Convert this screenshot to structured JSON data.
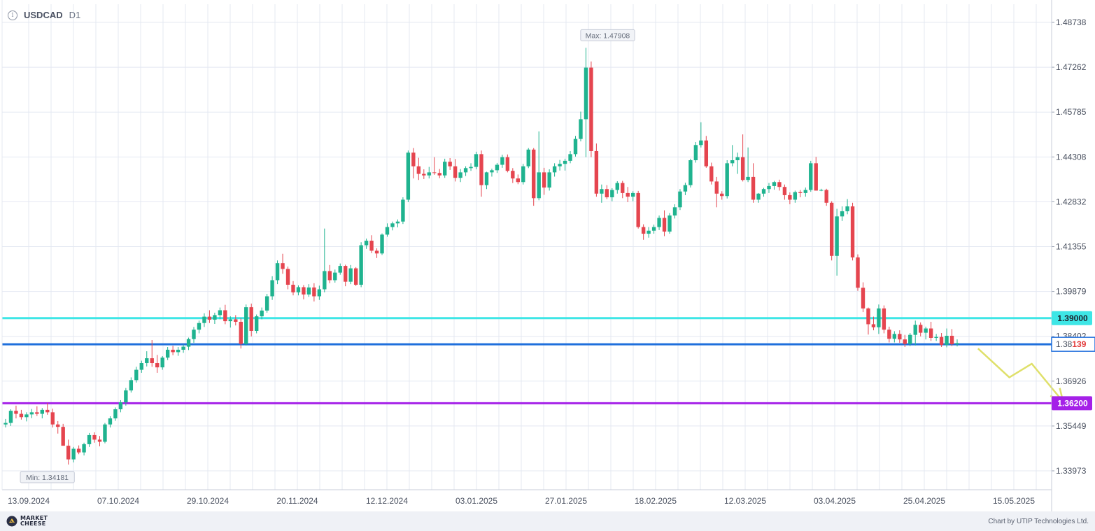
{
  "header": {
    "symbol": "USDCAD",
    "timeframe": "D1",
    "info_icon": "info-circle-icon"
  },
  "footer": {
    "logo_line1": "MARKET",
    "logo_line2": "CHEESE",
    "credit": "Chart by UTIP Technologies Ltd."
  },
  "chart_data": {
    "type": "candlestick",
    "symbol": "USDCAD",
    "timeframe": "D1",
    "y_ticks": [
      "1.48738",
      "1.47262",
      "1.45785",
      "1.44308",
      "1.42832",
      "1.41355",
      "1.39879",
      "1.38402",
      "1.36926",
      "1.35449",
      "1.33973"
    ],
    "ylim": [
      1.3355,
      1.494
    ],
    "x_ticks": [
      "13.09.2024",
      "07.10.2024",
      "29.10.2024",
      "20.11.2024",
      "12.12.2024",
      "03.01.2025",
      "27.01.2025",
      "18.02.2025",
      "12.03.2025",
      "03.04.2025",
      "25.04.2025",
      "15.05.2025"
    ],
    "max_label": "Max: 1.47908",
    "min_label": "Min: 1.34181",
    "levels": [
      {
        "name": "resistance",
        "value": "1.39000",
        "color": "#3ee6e6"
      },
      {
        "name": "current",
        "value": "1.38139",
        "prefix": "1.38",
        "suffix": "139",
        "color": "#1f6fdc",
        "suffix_color": "#e23a3a"
      },
      {
        "name": "support",
        "value": "1.36200",
        "color": "#a521e8"
      }
    ],
    "colors": {
      "up": "#1fb38f",
      "down": "#e5454f",
      "grid": "#e4e8f2",
      "forecast": "#dfe06a"
    },
    "forecast_path": [
      {
        "date": "07.05.2025",
        "price": 1.38
      },
      {
        "date": "14.05.2025",
        "price": 1.3705
      },
      {
        "date": "19.05.2025",
        "price": 1.375
      },
      {
        "date": "26.05.2025",
        "price": 1.3625
      }
    ],
    "candles": [
      [
        1.355,
        1.3568,
        1.354,
        1.3555
      ],
      [
        1.3555,
        1.36,
        1.3545,
        1.3595
      ],
      [
        1.3595,
        1.3612,
        1.357,
        1.3585
      ],
      [
        1.3585,
        1.3598,
        1.3566,
        1.3574
      ],
      [
        1.3574,
        1.359,
        1.356,
        1.3583
      ],
      [
        1.3583,
        1.3601,
        1.3571,
        1.359
      ],
      [
        1.359,
        1.361,
        1.3578,
        1.3585
      ],
      [
        1.3585,
        1.3604,
        1.357,
        1.3598
      ],
      [
        1.3598,
        1.3621,
        1.3582,
        1.359
      ],
      [
        1.359,
        1.3602,
        1.354,
        1.355
      ],
      [
        1.355,
        1.3561,
        1.352,
        1.3542
      ],
      [
        1.3542,
        1.3552,
        1.348,
        1.348
      ],
      [
        1.348,
        1.35,
        1.3418,
        1.3435
      ],
      [
        1.3435,
        1.3476,
        1.3425,
        1.347
      ],
      [
        1.347,
        1.3481,
        1.3452,
        1.3458
      ],
      [
        1.3458,
        1.349,
        1.3448,
        1.3485
      ],
      [
        1.3485,
        1.3522,
        1.3476,
        1.3515
      ],
      [
        1.3515,
        1.3524,
        1.349,
        1.35
      ],
      [
        1.35,
        1.3512,
        1.3478,
        1.3493
      ],
      [
        1.3493,
        1.3555,
        1.3488,
        1.355
      ],
      [
        1.355,
        1.3577,
        1.354,
        1.357
      ],
      [
        1.357,
        1.3606,
        1.3562,
        1.36
      ],
      [
        1.36,
        1.363,
        1.359,
        1.3623
      ],
      [
        1.3623,
        1.367,
        1.3612,
        1.3662
      ],
      [
        1.3662,
        1.3705,
        1.3655,
        1.3696
      ],
      [
        1.3696,
        1.374,
        1.3688,
        1.373
      ],
      [
        1.373,
        1.376,
        1.372,
        1.3752
      ],
      [
        1.3752,
        1.3791,
        1.3741,
        1.3768
      ],
      [
        1.3768,
        1.3828,
        1.374,
        1.3752
      ],
      [
        1.3752,
        1.3779,
        1.372,
        1.3738
      ],
      [
        1.3738,
        1.3775,
        1.373,
        1.377
      ],
      [
        1.377,
        1.3805,
        1.3762,
        1.3796
      ],
      [
        1.3796,
        1.3809,
        1.3778,
        1.3788
      ],
      [
        1.3788,
        1.3805,
        1.3776,
        1.3796
      ],
      [
        1.3796,
        1.3813,
        1.3786,
        1.3806
      ],
      [
        1.3806,
        1.3836,
        1.3795,
        1.3831
      ],
      [
        1.3831,
        1.3871,
        1.3819,
        1.3862
      ],
      [
        1.3862,
        1.3892,
        1.385,
        1.3884
      ],
      [
        1.3884,
        1.3916,
        1.3871,
        1.3905
      ],
      [
        1.3905,
        1.3926,
        1.3884,
        1.3895
      ],
      [
        1.3895,
        1.3918,
        1.3881,
        1.391
      ],
      [
        1.391,
        1.3935,
        1.3896,
        1.3926
      ],
      [
        1.3926,
        1.3944,
        1.388,
        1.389
      ],
      [
        1.389,
        1.3906,
        1.3869,
        1.3896
      ],
      [
        1.3896,
        1.391,
        1.3876,
        1.3888
      ],
      [
        1.3888,
        1.39,
        1.38,
        1.3815
      ],
      [
        1.3815,
        1.3945,
        1.381,
        1.3936
      ],
      [
        1.3936,
        1.3948,
        1.384,
        1.3858
      ],
      [
        1.3858,
        1.3912,
        1.385,
        1.3906
      ],
      [
        1.3906,
        1.3935,
        1.3896,
        1.3925
      ],
      [
        1.3925,
        1.398,
        1.3918,
        1.3972
      ],
      [
        1.3972,
        1.4038,
        1.396,
        1.4025
      ],
      [
        1.4025,
        1.409,
        1.4012,
        1.4081
      ],
      [
        1.4081,
        1.4112,
        1.4046,
        1.4062
      ],
      [
        1.4062,
        1.407,
        1.3995,
        1.401
      ],
      [
        1.401,
        1.4022,
        1.3975,
        1.3985
      ],
      [
        1.3985,
        1.4008,
        1.3975,
        1.4002
      ],
      [
        1.4002,
        1.4009,
        1.3962,
        1.3978
      ],
      [
        1.3978,
        1.4012,
        1.397,
        1.4001
      ],
      [
        1.4001,
        1.4015,
        1.3955,
        1.3972
      ],
      [
        1.3972,
        1.4007,
        1.396,
        1.3995
      ],
      [
        1.3995,
        1.4195,
        1.3985,
        1.4055
      ],
      [
        1.4055,
        1.4075,
        1.4015,
        1.4025
      ],
      [
        1.4025,
        1.406,
        1.4017,
        1.405
      ],
      [
        1.405,
        1.408,
        1.4043,
        1.4072
      ],
      [
        1.4072,
        1.4076,
        1.4005,
        1.402
      ],
      [
        1.402,
        1.4075,
        1.4012,
        1.4064
      ],
      [
        1.4064,
        1.4068,
        1.4006,
        1.401
      ],
      [
        1.401,
        1.415,
        1.4002,
        1.414
      ],
      [
        1.414,
        1.4162,
        1.4128,
        1.4155
      ],
      [
        1.4155,
        1.4173,
        1.4114,
        1.4122
      ],
      [
        1.4122,
        1.413,
        1.4098,
        1.4113
      ],
      [
        1.4113,
        1.4179,
        1.4108,
        1.4175
      ],
      [
        1.4175,
        1.4212,
        1.4168,
        1.42
      ],
      [
        1.42,
        1.4218,
        1.4189,
        1.4212
      ],
      [
        1.4212,
        1.4225,
        1.4199,
        1.4218
      ],
      [
        1.4218,
        1.4298,
        1.421,
        1.429
      ],
      [
        1.429,
        1.4452,
        1.4282,
        1.4445
      ],
      [
        1.4445,
        1.446,
        1.436,
        1.44
      ],
      [
        1.44,
        1.4428,
        1.4355,
        1.4375
      ],
      [
        1.4375,
        1.439,
        1.4358,
        1.437
      ],
      [
        1.437,
        1.4398,
        1.436,
        1.438
      ],
      [
        1.438,
        1.443,
        1.4372,
        1.4378
      ],
      [
        1.4378,
        1.4391,
        1.4361,
        1.437
      ],
      [
        1.437,
        1.4425,
        1.4362,
        1.4415
      ],
      [
        1.4415,
        1.4427,
        1.4388,
        1.44
      ],
      [
        1.44,
        1.4424,
        1.435,
        1.4362
      ],
      [
        1.4362,
        1.4391,
        1.4348,
        1.438
      ],
      [
        1.438,
        1.44,
        1.4368,
        1.4394
      ],
      [
        1.4394,
        1.441,
        1.4385,
        1.4398
      ],
      [
        1.4398,
        1.4448,
        1.439,
        1.444
      ],
      [
        1.444,
        1.4452,
        1.43,
        1.4338
      ],
      [
        1.4338,
        1.4382,
        1.4325,
        1.438
      ],
      [
        1.438,
        1.4392,
        1.4366,
        1.4387
      ],
      [
        1.4387,
        1.4411,
        1.4378,
        1.4405
      ],
      [
        1.4405,
        1.4438,
        1.4395,
        1.443
      ],
      [
        1.443,
        1.4439,
        1.438,
        1.4385
      ],
      [
        1.4385,
        1.4394,
        1.4345,
        1.436
      ],
      [
        1.436,
        1.4373,
        1.4341,
        1.4348
      ],
      [
        1.4348,
        1.4408,
        1.434,
        1.44
      ],
      [
        1.44,
        1.446,
        1.4394,
        1.4455
      ],
      [
        1.4455,
        1.446,
        1.427,
        1.4295
      ],
      [
        1.4295,
        1.4515,
        1.4288,
        1.438
      ],
      [
        1.438,
        1.4395,
        1.4306,
        1.433
      ],
      [
        1.433,
        1.439,
        1.432,
        1.438
      ],
      [
        1.438,
        1.441,
        1.4366,
        1.44
      ],
      [
        1.44,
        1.4421,
        1.4386,
        1.4408
      ],
      [
        1.4408,
        1.4425,
        1.4386,
        1.4418
      ],
      [
        1.4418,
        1.445,
        1.441,
        1.444
      ],
      [
        1.444,
        1.45,
        1.4432,
        1.449
      ],
      [
        1.449,
        1.458,
        1.4482,
        1.4555
      ],
      [
        1.4555,
        1.479,
        1.443,
        1.4725
      ],
      [
        1.4725,
        1.4745,
        1.443,
        1.445
      ],
      [
        1.445,
        1.4475,
        1.43,
        1.431
      ],
      [
        1.431,
        1.434,
        1.428,
        1.4325
      ],
      [
        1.4325,
        1.4338,
        1.4292,
        1.4298
      ],
      [
        1.4298,
        1.4328,
        1.4285,
        1.4322
      ],
      [
        1.4322,
        1.4351,
        1.431,
        1.4345
      ],
      [
        1.4345,
        1.4352,
        1.4295,
        1.4312
      ],
      [
        1.4312,
        1.4332,
        1.4282,
        1.43
      ],
      [
        1.43,
        1.4318,
        1.4285,
        1.4312
      ],
      [
        1.4312,
        1.4319,
        1.4195,
        1.42
      ],
      [
        1.42,
        1.4209,
        1.4158,
        1.4178
      ],
      [
        1.4178,
        1.42,
        1.4165,
        1.4188
      ],
      [
        1.4188,
        1.4208,
        1.4178,
        1.42
      ],
      [
        1.42,
        1.4238,
        1.419,
        1.423
      ],
      [
        1.423,
        1.4255,
        1.417,
        1.4185
      ],
      [
        1.4185,
        1.4246,
        1.4178,
        1.4238
      ],
      [
        1.4238,
        1.4275,
        1.4228,
        1.4265
      ],
      [
        1.4265,
        1.4325,
        1.4256,
        1.4317
      ],
      [
        1.4317,
        1.4346,
        1.4305,
        1.4338
      ],
      [
        1.4338,
        1.4425,
        1.433,
        1.442
      ],
      [
        1.442,
        1.448,
        1.4412,
        1.447
      ],
      [
        1.447,
        1.4545,
        1.4462,
        1.4485
      ],
      [
        1.4485,
        1.45,
        1.4395,
        1.44
      ],
      [
        1.44,
        1.4412,
        1.434,
        1.435
      ],
      [
        1.435,
        1.4365,
        1.4265,
        1.431
      ],
      [
        1.431,
        1.4318,
        1.429,
        1.4302
      ],
      [
        1.4302,
        1.442,
        1.4294,
        1.441
      ],
      [
        1.441,
        1.447,
        1.44,
        1.442
      ],
      [
        1.442,
        1.4445,
        1.4375,
        1.443
      ],
      [
        1.443,
        1.4505,
        1.435,
        1.4355
      ],
      [
        1.4355,
        1.4462,
        1.4348,
        1.4365
      ],
      [
        1.4365,
        1.441,
        1.428,
        1.429
      ],
      [
        1.429,
        1.4312,
        1.428,
        1.431
      ],
      [
        1.431,
        1.4329,
        1.43,
        1.4325
      ],
      [
        1.4325,
        1.4345,
        1.4312,
        1.4335
      ],
      [
        1.4335,
        1.4352,
        1.4323,
        1.4348
      ],
      [
        1.4348,
        1.4356,
        1.432,
        1.4332
      ],
      [
        1.4332,
        1.434,
        1.429,
        1.4305
      ],
      [
        1.4305,
        1.4314,
        1.4275,
        1.429
      ],
      [
        1.429,
        1.432,
        1.428,
        1.4315
      ],
      [
        1.4315,
        1.4322,
        1.4298,
        1.4312
      ],
      [
        1.4312,
        1.433,
        1.43,
        1.4322
      ],
      [
        1.4322,
        1.4418,
        1.4316,
        1.441
      ],
      [
        1.441,
        1.4431,
        1.432,
        1.432
      ],
      [
        1.432,
        1.4326,
        1.4318,
        1.4322
      ],
      [
        1.4322,
        1.4326,
        1.427,
        1.428
      ],
      [
        1.428,
        1.4285,
        1.409,
        1.4105
      ],
      [
        1.4105,
        1.426,
        1.404,
        1.4235
      ],
      [
        1.4235,
        1.4268,
        1.422,
        1.4252
      ],
      [
        1.4252,
        1.4292,
        1.4242,
        1.4268
      ],
      [
        1.4268,
        1.428,
        1.409,
        1.41
      ],
      [
        1.41,
        1.411,
        1.399,
        1.4
      ],
      [
        1.4,
        1.4018,
        1.392,
        1.3932
      ],
      [
        1.3932,
        1.3935,
        1.3846,
        1.388
      ],
      [
        1.388,
        1.3905,
        1.386,
        1.387
      ],
      [
        1.387,
        1.3945,
        1.3848,
        1.3932
      ],
      [
        1.3932,
        1.3942,
        1.385,
        1.3862
      ],
      [
        1.3862,
        1.3872,
        1.382,
        1.3832
      ],
      [
        1.3832,
        1.3857,
        1.382,
        1.3848
      ],
      [
        1.3848,
        1.386,
        1.3819,
        1.383
      ],
      [
        1.383,
        1.3845,
        1.3805,
        1.3815
      ],
      [
        1.3815,
        1.3851,
        1.3808,
        1.3845
      ],
      [
        1.3845,
        1.3892,
        1.381,
        1.3878
      ],
      [
        1.3878,
        1.3886,
        1.384,
        1.3852
      ],
      [
        1.3852,
        1.3872,
        1.383,
        1.3866
      ],
      [
        1.3866,
        1.3888,
        1.3825,
        1.3835
      ],
      [
        1.3835,
        1.3848,
        1.3825,
        1.3838
      ],
      [
        1.3838,
        1.3851,
        1.3805,
        1.3812
      ],
      [
        1.3812,
        1.3866,
        1.3804,
        1.3842
      ],
      [
        1.3842,
        1.3864,
        1.3808,
        1.3814
      ],
      [
        1.3814,
        1.383,
        1.3807,
        1.3818
      ]
    ]
  }
}
